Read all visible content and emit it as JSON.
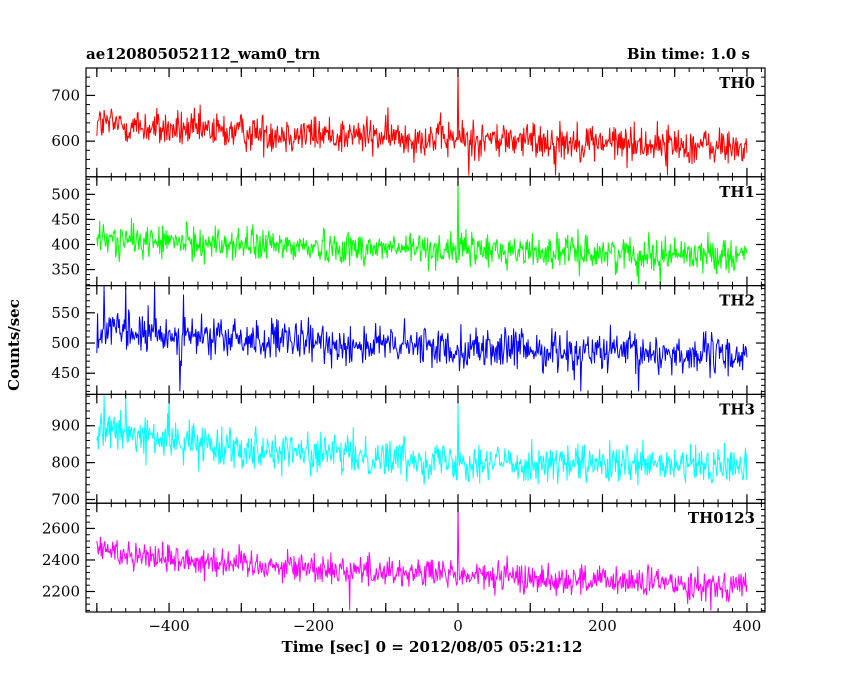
{
  "chart_data": {
    "type": "line",
    "title": "ae120805052112_wam0_trn",
    "subtitle": "Bin time: 1.0 s",
    "xlabel": "Time [sec] 0 = 2012/08/05 05:21:12",
    "ylabel": "Counts/sec",
    "xlim": [
      -515,
      425
    ],
    "x_ticks": [
      -400,
      -200,
      0,
      200,
      400
    ],
    "x_range_data": [
      -500,
      400
    ],
    "grid": false,
    "legend": "none",
    "series": [
      {
        "name": "TH0",
        "color": "#ff0000",
        "ylim": [
          522,
          760
        ],
        "y_ticks": [
          600,
          700
        ],
        "profile": [
          [
            -500,
            640
          ],
          [
            -400,
            625
          ],
          [
            -200,
            615
          ],
          [
            0,
            605
          ],
          [
            200,
            598
          ],
          [
            400,
            585
          ]
        ],
        "noise": 30,
        "spike": {
          "x": 0,
          "y": 760
        },
        "dips": [
          [
            15,
            525
          ],
          [
            135,
            525
          ],
          [
            290,
            525
          ]
        ]
      },
      {
        "name": "TH1",
        "color": "#00ff00",
        "ylim": [
          318,
          535
        ],
        "y_ticks": [
          350,
          400,
          450,
          500
        ],
        "profile": [
          [
            -500,
            410
          ],
          [
            -400,
            405
          ],
          [
            -200,
            395
          ],
          [
            0,
            390
          ],
          [
            200,
            383
          ],
          [
            400,
            380
          ]
        ],
        "noise": 24,
        "spike": {
          "x": 0,
          "y": 535
        },
        "dips": [
          [
            250,
            320
          ],
          [
            280,
            320
          ]
        ]
      },
      {
        "name": "TH2",
        "color": "#0000ff",
        "ylim": [
          415,
          595
        ],
        "y_ticks": [
          450,
          500,
          550
        ],
        "profile": [
          [
            -500,
            520
          ],
          [
            -400,
            512
          ],
          [
            -200,
            500
          ],
          [
            0,
            492
          ],
          [
            200,
            485
          ],
          [
            400,
            478
          ]
        ],
        "noise": 24,
        "spike": null,
        "peaks": [
          [
            -490,
            595
          ],
          [
            -460,
            595
          ],
          [
            -420,
            595
          ],
          [
            -380,
            580
          ]
        ],
        "dips": [
          [
            -385,
            420
          ],
          [
            170,
            420
          ],
          [
            250,
            420
          ]
        ]
      },
      {
        "name": "TH3",
        "color": "#00ffff",
        "ylim": [
          690,
          985
        ],
        "y_ticks": [
          700,
          800,
          900
        ],
        "profile": [
          [
            -500,
            890
          ],
          [
            -400,
            860
          ],
          [
            -200,
            825
          ],
          [
            0,
            805
          ],
          [
            200,
            792
          ],
          [
            400,
            790
          ]
        ],
        "noise": 38,
        "spike": {
          "x": 0,
          "y": 960
        },
        "peaks": [
          [
            -490,
            985
          ],
          [
            -460,
            985
          ],
          [
            -400,
            985
          ]
        ]
      },
      {
        "name": "TH0123",
        "color": "#ff00ff",
        "ylim": [
          2070,
          2760
        ],
        "y_ticks": [
          2200,
          2400,
          2600
        ],
        "profile": [
          [
            -500,
            2470
          ],
          [
            -400,
            2410
          ],
          [
            -200,
            2350
          ],
          [
            0,
            2305
          ],
          [
            200,
            2265
          ],
          [
            400,
            2240
          ]
        ],
        "noise": 70,
        "spike": {
          "x": 0,
          "y": 2760
        },
        "dips": [
          [
            -150,
            2080
          ],
          [
            350,
            2080
          ]
        ]
      }
    ]
  }
}
